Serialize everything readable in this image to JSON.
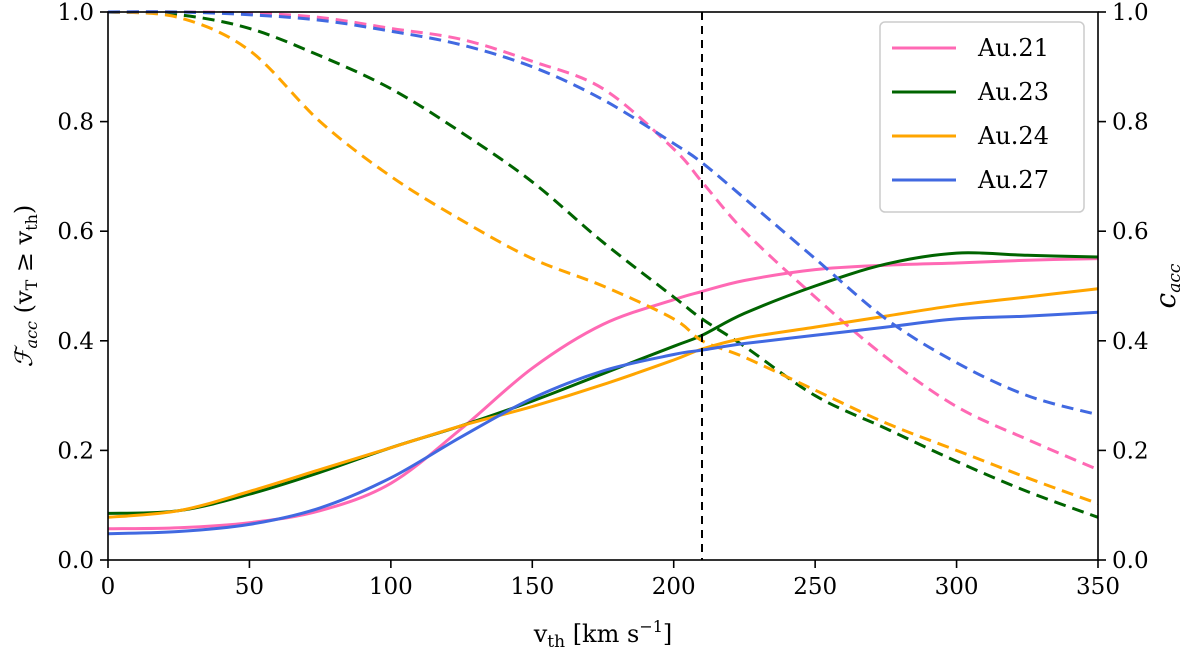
{
  "chart_data": {
    "type": "line",
    "xlabel": "v_th [km s^-1]",
    "ylabel_left": "F_acc (v_T ≥ v_th)",
    "ylabel_right": "c_acc",
    "xlim": [
      0,
      350
    ],
    "ylim_left": [
      0,
      1
    ],
    "ylim_right": [
      0,
      1
    ],
    "x_ticks": [
      0,
      50,
      100,
      150,
      200,
      250,
      300,
      350
    ],
    "y_ticks": [
      0.0,
      0.2,
      0.4,
      0.6,
      0.8,
      1.0
    ],
    "tick_labels_x": [
      "0",
      "50",
      "100",
      "150",
      "200",
      "250",
      "300",
      "350"
    ],
    "tick_labels_y": [
      "0.0",
      "0.2",
      "0.4",
      "0.6",
      "0.8",
      "1.0"
    ],
    "vline_x": 210,
    "legend_position": "top-right",
    "x": [
      0,
      25,
      50,
      75,
      100,
      125,
      150,
      175,
      200,
      210,
      225,
      250,
      275,
      300,
      325,
      350
    ],
    "series": [
      {
        "name": "Au.21",
        "color": "#ff69b4",
        "solid": [
          0.057,
          0.059,
          0.068,
          0.09,
          0.14,
          0.24,
          0.35,
          0.43,
          0.475,
          0.49,
          0.51,
          0.53,
          0.538,
          0.542,
          0.547,
          0.55
        ],
        "dashed": [
          1.0,
          1.0,
          0.998,
          0.99,
          0.97,
          0.95,
          0.91,
          0.86,
          0.75,
          0.69,
          0.6,
          0.48,
          0.37,
          0.28,
          0.22,
          0.165
        ]
      },
      {
        "name": "Au.23",
        "color": "#006400",
        "solid": [
          0.085,
          0.09,
          0.12,
          0.16,
          0.205,
          0.245,
          0.29,
          0.34,
          0.39,
          0.41,
          0.45,
          0.5,
          0.54,
          0.56,
          0.556,
          0.553
        ],
        "dashed": [
          1.0,
          0.995,
          0.97,
          0.92,
          0.86,
          0.78,
          0.69,
          0.58,
          0.48,
          0.44,
          0.39,
          0.3,
          0.24,
          0.18,
          0.125,
          0.078
        ]
      },
      {
        "name": "Au.24",
        "color": "#ffa500",
        "solid": [
          0.078,
          0.09,
          0.125,
          0.165,
          0.205,
          0.245,
          0.28,
          0.32,
          0.365,
          0.385,
          0.405,
          0.425,
          0.445,
          0.465,
          0.48,
          0.495
        ],
        "dashed": [
          1.0,
          0.99,
          0.93,
          0.8,
          0.7,
          0.62,
          0.55,
          0.5,
          0.44,
          0.4,
          0.37,
          0.31,
          0.25,
          0.2,
          0.15,
          0.103
        ]
      },
      {
        "name": "Au.27",
        "color": "#4169e1",
        "solid": [
          0.048,
          0.052,
          0.065,
          0.095,
          0.15,
          0.225,
          0.295,
          0.345,
          0.375,
          0.383,
          0.395,
          0.41,
          0.425,
          0.44,
          0.445,
          0.452
        ],
        "dashed": [
          1.0,
          1.0,
          0.995,
          0.985,
          0.965,
          0.94,
          0.9,
          0.84,
          0.76,
          0.725,
          0.66,
          0.55,
          0.44,
          0.36,
          0.3,
          0.265
        ]
      }
    ]
  }
}
